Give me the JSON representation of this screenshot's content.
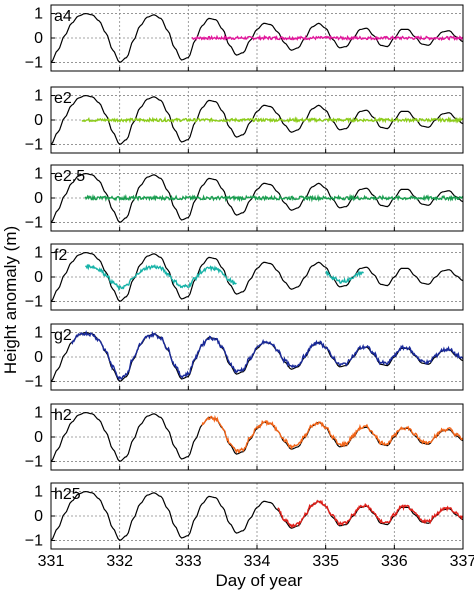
{
  "chart_data": {
    "type": "line",
    "xlabel": "Day of year",
    "ylabel": "Height anomaly (m)",
    "xlim": [
      331,
      337
    ],
    "x_ticks": [
      331,
      332,
      333,
      334,
      335,
      336,
      337
    ],
    "ylim": [
      -1.35,
      1.35
    ],
    "y_ticks": [
      -1,
      0,
      1
    ],
    "grid": true,
    "reference_series": {
      "description_visible": false,
      "color": "#000000",
      "x": [
        331.0,
        331.1,
        331.2,
        331.3,
        331.4,
        331.5,
        331.6,
        331.7,
        331.8,
        331.9,
        332.0,
        332.1,
        332.2,
        332.3,
        332.4,
        332.5,
        332.6,
        332.7,
        332.8,
        332.9,
        333.0,
        333.1,
        333.2,
        333.3,
        333.4,
        333.5,
        333.6,
        333.7,
        333.8,
        333.9,
        334.0,
        334.1,
        334.2,
        334.3,
        334.4,
        334.5,
        334.6,
        334.7,
        334.8,
        334.9,
        335.0,
        335.1,
        335.2,
        335.3,
        335.4,
        335.5,
        335.6,
        335.7,
        335.8,
        335.9,
        336.0,
        336.1,
        336.2,
        336.3,
        336.4,
        336.5,
        336.6,
        336.7,
        336.8,
        336.9,
        337.0
      ],
      "y": [
        -1.0,
        -0.5,
        0.1,
        0.6,
        0.9,
        1.0,
        0.95,
        0.7,
        0.2,
        -0.5,
        -1.0,
        -0.8,
        -0.1,
        0.5,
        0.85,
        0.95,
        0.8,
        0.3,
        -0.4,
        -0.9,
        -0.8,
        -0.1,
        0.5,
        0.8,
        0.75,
        0.35,
        -0.3,
        -0.7,
        -0.6,
        -0.1,
        0.35,
        0.6,
        0.55,
        0.25,
        -0.2,
        -0.5,
        -0.4,
        0.0,
        0.45,
        0.6,
        0.4,
        -0.05,
        -0.4,
        -0.35,
        0.0,
        0.35,
        0.4,
        0.1,
        -0.3,
        -0.35,
        0.0,
        0.35,
        0.35,
        0.05,
        -0.25,
        -0.3,
        0.0,
        0.25,
        0.3,
        0.05,
        -0.15
      ]
    },
    "panels": [
      {
        "label": "a4",
        "color": "#e0169a",
        "x_start": 333.05,
        "x_end": 337.0,
        "mode": "flat",
        "noise": 0.06
      },
      {
        "label": "e2",
        "color": "#8ccc1a",
        "x_start": 331.45,
        "x_end": 337.0,
        "mode": "flat",
        "noise": 0.06
      },
      {
        "label": "e2.5",
        "color": "#1a9e50",
        "x_start": 331.5,
        "x_end": 337.0,
        "mode": "flat",
        "noise": 0.07
      },
      {
        "label": "f2",
        "color": "#18b3a8",
        "x_start": 331.5,
        "x_end": 333.7,
        "x_start2": 335.0,
        "x_end2": 335.55,
        "mode": "attenuated",
        "noise": 0.07
      },
      {
        "label": "g2",
        "color": "#1a2a9a",
        "x_start": 331.3,
        "x_end": 337.0,
        "mode": "follow",
        "noise": 0.07
      },
      {
        "label": "h2",
        "color": "#f26418",
        "x_start": 333.2,
        "x_end": 337.0,
        "mode": "follow",
        "noise": 0.07
      },
      {
        "label": "h25",
        "color": "#e0201a",
        "x_start": 334.3,
        "x_end": 337.0,
        "mode": "follow",
        "noise": 0.07
      }
    ]
  }
}
